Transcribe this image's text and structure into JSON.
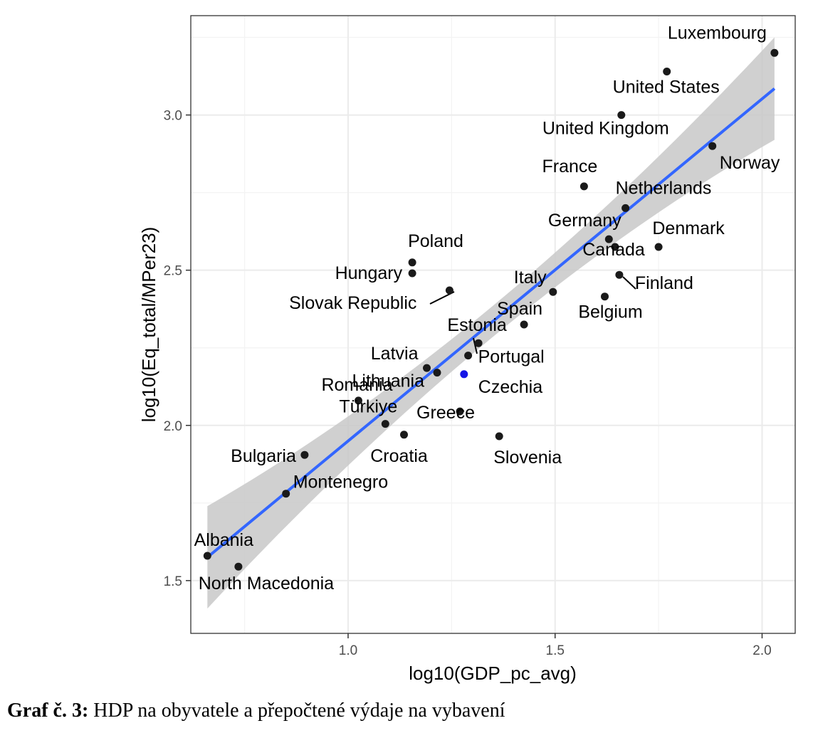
{
  "caption": {
    "label": "Graf č. 3:",
    "text": " HDP na obyvatele a přepočtené výdaje na vybavení"
  },
  "chart_data": {
    "type": "scatter",
    "xlabel": "log10(GDP_pc_avg)",
    "ylabel": "log10(Eq_total/MPer23)",
    "xlim": [
      0.62,
      2.08
    ],
    "ylim": [
      1.33,
      3.32
    ],
    "x_ticks": [
      1.0,
      1.5,
      2.0
    ],
    "x_tick_labels": [
      "1.0",
      "1.5",
      "2.0"
    ],
    "y_ticks": [
      1.5,
      2.0,
      2.5,
      3.0
    ],
    "y_tick_labels": [
      "1.5",
      "2.0",
      "2.5",
      "3.0"
    ],
    "grid": true,
    "regression": {
      "x": [
        0.66,
        2.03
      ],
      "y": [
        1.575,
        3.085
      ],
      "ci_lower_at_ends": [
        1.41,
        2.92
      ],
      "ci_upper_at_ends": [
        1.74,
        3.25
      ]
    },
    "points": [
      {
        "label": "Luxembourg",
        "x": 2.03,
        "y": 3.2
      },
      {
        "label": "United States",
        "x": 1.77,
        "y": 3.14
      },
      {
        "label": "United Kingdom",
        "x": 1.66,
        "y": 3.0
      },
      {
        "label": "Norway",
        "x": 1.88,
        "y": 2.9
      },
      {
        "label": "France",
        "x": 1.57,
        "y": 2.77
      },
      {
        "label": "Netherlands",
        "x": 1.67,
        "y": 2.7
      },
      {
        "label": "Germany",
        "x": 1.63,
        "y": 2.6
      },
      {
        "label": "Denmark",
        "x": 1.75,
        "y": 2.575
      },
      {
        "label": "Canada",
        "x": 1.645,
        "y": 2.575
      },
      {
        "label": "Poland",
        "x": 1.155,
        "y": 2.525
      },
      {
        "label": "Hungary",
        "x": 1.155,
        "y": 2.49
      },
      {
        "label": "Finland",
        "x": 1.655,
        "y": 2.485
      },
      {
        "label": "Slovak Republic",
        "x": 1.245,
        "y": 2.435
      },
      {
        "label": "Italy",
        "x": 1.495,
        "y": 2.43
      },
      {
        "label": "Belgium",
        "x": 1.62,
        "y": 2.415
      },
      {
        "label": "Spain",
        "x": 1.425,
        "y": 2.325
      },
      {
        "label": "Estonia",
        "x": 1.315,
        "y": 2.265
      },
      {
        "label": "Portugal",
        "x": 1.29,
        "y": 2.225
      },
      {
        "label": "Latvia",
        "x": 1.19,
        "y": 2.185
      },
      {
        "label": "Lithuania",
        "x": 1.215,
        "y": 2.17
      },
      {
        "label": "Czechia",
        "x": 1.28,
        "y": 2.165,
        "highlight": true
      },
      {
        "label": "Romania",
        "x": 1.025,
        "y": 2.08
      },
      {
        "label": "Türkiye",
        "x": 1.09,
        "y": 2.005
      },
      {
        "label": "Greece",
        "x": 1.27,
        "y": 2.045
      },
      {
        "label": "Croatia",
        "x": 1.135,
        "y": 1.97
      },
      {
        "label": "Slovenia",
        "x": 1.365,
        "y": 1.965
      },
      {
        "label": "Bulgaria",
        "x": 0.895,
        "y": 1.905
      },
      {
        "label": "Montenegro",
        "x": 0.85,
        "y": 1.78
      },
      {
        "label": "Albania",
        "x": 0.66,
        "y": 1.58
      },
      {
        "label": "North Macedonia",
        "x": 0.735,
        "y": 1.545
      }
    ],
    "colors": {
      "point": "#1a1a1a",
      "highlight": "#1515e6",
      "line": "#3366ff",
      "band": "#c8c8c8",
      "grid": "#ebebeb",
      "border": "#333333"
    }
  }
}
